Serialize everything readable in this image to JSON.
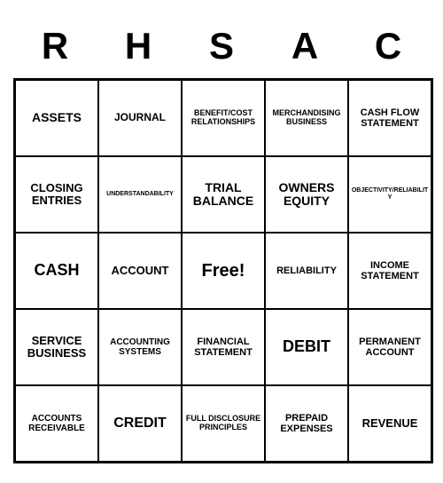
{
  "headers": [
    "R",
    "H",
    "S",
    "A",
    "C"
  ],
  "cells": [
    {
      "text": "ASSETS",
      "size": "fs-14"
    },
    {
      "text": "JOURNAL",
      "size": "fs-12"
    },
    {
      "text": "BENEFIT/COST RELATIONSHIPS",
      "size": "fs-9"
    },
    {
      "text": "MERCHANDISING BUSINESS",
      "size": "fs-9"
    },
    {
      "text": "CASH FLOW STATEMENT",
      "size": "fs-11"
    },
    {
      "text": "CLOSING ENTRIES",
      "size": "fs-13"
    },
    {
      "text": "UNDERSTANDABILITY",
      "size": "fs-7"
    },
    {
      "text": "TRIAL BALANCE",
      "size": "fs-14"
    },
    {
      "text": "OWNERS EQUITY",
      "size": "fs-14"
    },
    {
      "text": "OBJECTIVITY/RELIABILITY",
      "size": "fs-7"
    },
    {
      "text": "CASH",
      "size": "fs-18"
    },
    {
      "text": "ACCOUNT",
      "size": "fs-13"
    },
    {
      "text": "Free!",
      "size": "free"
    },
    {
      "text": "RELIABILITY",
      "size": "fs-11"
    },
    {
      "text": "INCOME STATEMENT",
      "size": "fs-11"
    },
    {
      "text": "SERVICE BUSINESS",
      "size": "fs-13"
    },
    {
      "text": "ACCOUNTING SYSTEMS",
      "size": "fs-10"
    },
    {
      "text": "FINANCIAL STATEMENT",
      "size": "fs-11"
    },
    {
      "text": "DEBIT",
      "size": "fs-18"
    },
    {
      "text": "PERMANENT ACCOUNT",
      "size": "fs-11"
    },
    {
      "text": "ACCOUNTS RECEIVABLE",
      "size": "fs-10"
    },
    {
      "text": "CREDIT",
      "size": "fs-16"
    },
    {
      "text": "FULL DISCLOSURE PRINCIPLES",
      "size": "fs-9"
    },
    {
      "text": "PREPAID EXPENSES",
      "size": "fs-11"
    },
    {
      "text": "REVENUE",
      "size": "fs-13"
    }
  ]
}
